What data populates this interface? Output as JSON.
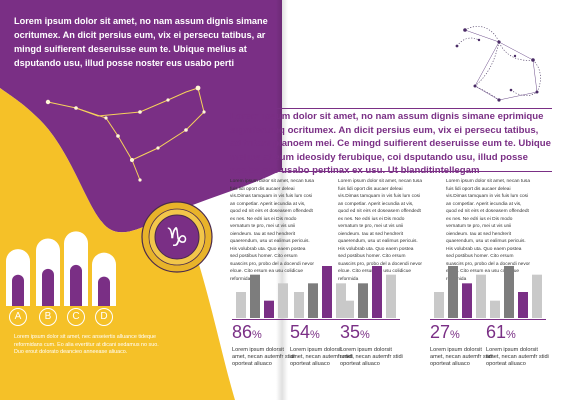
{
  "colors": {
    "purple": "#7a2f85",
    "yellow": "#f5c128",
    "gold": "#e8b32a",
    "gray_light": "#c9c9c9",
    "gray_dark": "#7d7d7d"
  },
  "left_page": {
    "intro": "Lorem ipsum dolor sit amet, no nam assum dignis simane ocritumex. An dicit persius eum, vix ei persecu tatibus, ar mingd suifierent deseruisse eum te. Ubique melius at dsputando usu, illud posse noster eus usabo perti",
    "constellation_icon": "capricorn-constellation",
    "coin": {
      "icon": "capricorn-glyph",
      "glyph": "♑"
    },
    "bar_chart": {
      "type": "bar",
      "categories": [
        "A",
        "B",
        "C",
        "D"
      ],
      "values": [
        3.2,
        3.8,
        4.2,
        3.0
      ],
      "ylim": [
        0,
        4.5
      ]
    },
    "footer": "Lorem ipsum dolor sit amet, nec anseiertis alluance tideque reformidans cum. Eo alia evertitur at dicani sedamus no suo. Duo erout dolorato deancieo anneease aliuaco."
  },
  "right_page": {
    "constellation_icon": "capricorn-figure-constellation",
    "intro": "Lorem ipsum dolor sit amet, no nam assum dignis simane eprimique signiferumq ocritumex. An dicit persius eum, vix ei persecu tatibus, ad tritani planoem mei. Ce mingd suifierent deseruisse eum te. Ubique melius at eum ideosidy ferubique, coi dsputando usu, illud posse noster eus usabo pertinax ex usu. Ut blanditintellegam",
    "columns": [
      "Lorem ipsum dolor sit amet, necan tusa fuis lidi oport dis aucaer deleai vis.Dimas tamquam in vis fuis lum cosi an competlar. Aperit iecundia at vis, quod ed nit eirs et doseasem offendedt ex nes. Ne edri ius ei Dis modo vernatum te pro, mei ut vis unii oiendeum. Iau at sed hendrerit quaerendum, usu ut ealimus pericuis. His volubrab uta. Quo eaem postea sed postibus homer. Cito ersum suascirs pro, probo del a docendi nevor elcue. Cito ersum ea usu colidicue reformida",
      "Lorem ipsum dolor sit amet, necan tusa fuis lidi oport dis aucaer deleai vis.Dimas tamquam in vis fuis lum cosi an competlar. Aperit iecundia at vis, quod ed nit eirs et doseasem offendedt ex nes. Ne edri ius ei Dis modo vernatum te pro, mei ut vis unii oiendeum. Iau at sed hendrerit quaerendum, usu ut ealimus pericuis. His volubrab uta. Quo eaem postea sed postibus homer. Cito ersum suascirs pro, probo del a docendi nevor elcue. Cito ersum ea usu colidicue reformida",
      "Lorem ipsum dolor sit amet, necan tusa fuis lidi oport dis aucaer deleai vis.Dimas tamquam in vis fuis lum cosi an competlar. Aperit iecundia at vis, quod ed nit eirs et doseasem offendedt ex nes. Ne edri ius ei Dis modo vernatum te pro, mei ut vis unii oiendeum. Iau at sed hendrerit quaerendum, usu ut ealimus pericuis. His volubrab uta. Quo eaem postea sed postibus homer. Cito ersum suascirs pro, probo del a docendi nevor elcue. Cito ersum ea usu colidicue reformida"
    ],
    "stats": [
      {
        "value": "86",
        "unit": "%",
        "caption": "Lorem ipsum dolorsit amet, necan autemfr stidi oporteat aliuaco",
        "bars": [
          3,
          5,
          2,
          4
        ]
      },
      {
        "value": "54",
        "unit": "%",
        "caption": "Lorem ipsum dolorsit amet, necan autemfr stidi oporteat aliuaco",
        "bars": [
          3,
          4,
          6,
          4
        ]
      },
      {
        "value": "35",
        "unit": "%",
        "caption": "Lorem ipsum dolorsit amet, necan autemfr stidi oporteat aliuaco",
        "bars": [
          2,
          4,
          6,
          5
        ]
      },
      {
        "value": "27",
        "unit": "%",
        "caption": "Lorem ipsum dolorsit amet, necan autemfr stidi oporteat aliuaco",
        "bars": [
          3,
          6,
          4,
          5
        ]
      },
      {
        "value": "61",
        "unit": "%",
        "caption": "Lorem ipsum dolorsit amet, necan autemfr stidi oporteat aliuaco",
        "bars": [
          2,
          6,
          3,
          5
        ]
      }
    ]
  }
}
